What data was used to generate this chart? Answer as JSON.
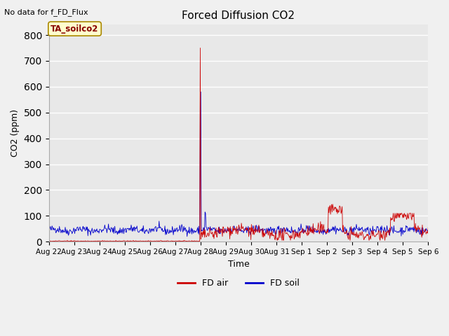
{
  "title": "Forced Diffusion CO2",
  "top_left_text": "No data for f_FD_Flux",
  "ylabel": "CO2 (ppm)",
  "xlabel": "Time",
  "ylim": [
    0,
    840
  ],
  "yticks": [
    0,
    100,
    200,
    300,
    400,
    500,
    600,
    700,
    800
  ],
  "xtick_labels": [
    "Aug 22",
    "Aug 23",
    "Aug 24",
    "Aug 25",
    "Aug 26",
    "Aug 27",
    "Aug 28",
    "Aug 29",
    "Aug 30",
    "Aug 31",
    "Sep 1",
    "Sep 2",
    "Sep 3",
    "Sep 4",
    "Sep 5",
    "Sep 6"
  ],
  "bg_color": "#f0f0f0",
  "plot_bg_color": "#e8e8e8",
  "legend_label_air": "FD air",
  "legend_label_soil": "FD soil",
  "air_color": "#cc0000",
  "soil_color": "#0000cc",
  "annotation_label": "TA_soilco2",
  "annotation_bg": "#ffffcc",
  "annotation_border": "#aa8800"
}
